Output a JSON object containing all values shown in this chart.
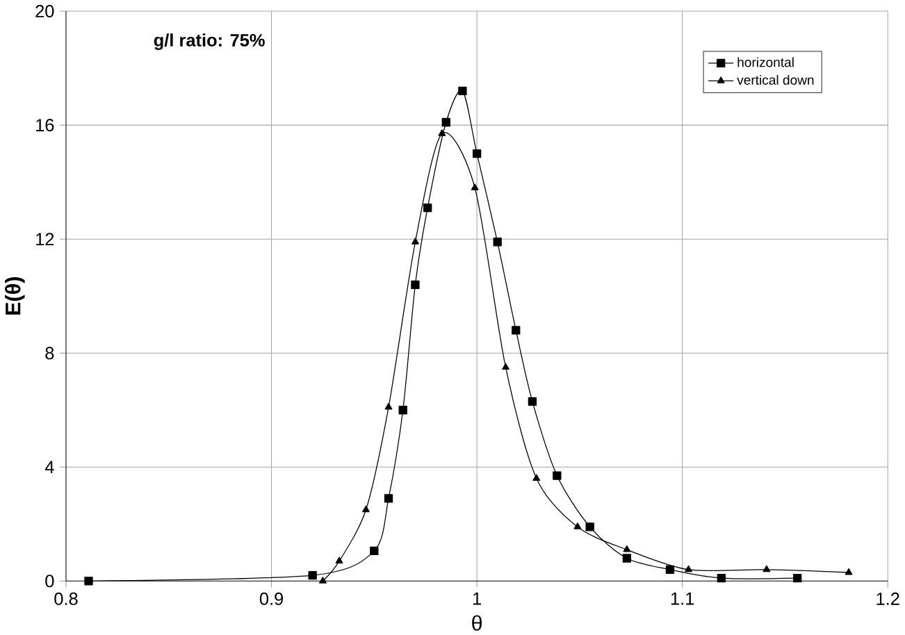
{
  "chart_data": {
    "type": "line",
    "xlabel": "θ",
    "ylabel": "E(θ)",
    "annotations": [
      "g/l ratio: 75%"
    ],
    "xlim": [
      0.8,
      1.2
    ],
    "xticks": [
      0.8,
      0.9,
      1,
      1.1,
      1.2
    ],
    "ylim": [
      0,
      20
    ],
    "yticks": [
      0,
      4,
      8,
      12,
      16,
      20
    ],
    "grid": true,
    "legend": "top right",
    "series": [
      {
        "name": "horizontal",
        "color": "#000000",
        "marker": "square",
        "x": [
          0.811,
          0.92,
          0.95,
          0.957,
          0.964,
          0.97,
          0.976,
          0.985,
          0.993,
          1.0,
          1.01,
          1.019,
          1.027,
          1.039,
          1.055,
          1.073,
          1.094,
          1.119,
          1.156
        ],
        "values": [
          0.0,
          0.2,
          1.06,
          2.9,
          6.0,
          10.4,
          13.1,
          16.1,
          17.2,
          15.0,
          11.9,
          8.8,
          6.3,
          3.7,
          1.9,
          0.8,
          0.4,
          0.1,
          0.1
        ]
      },
      {
        "name": "vertical down",
        "color": "#000000",
        "marker": "triangle",
        "x": [
          0.925,
          0.933,
          0.946,
          0.957,
          0.97,
          0.983,
          0.999,
          1.014,
          1.029,
          1.049,
          1.073,
          1.103,
          1.141,
          1.181
        ],
        "values": [
          0.0,
          0.7,
          2.5,
          6.1,
          11.9,
          15.7,
          13.8,
          7.5,
          3.6,
          1.9,
          1.1,
          0.4,
          0.4,
          0.3
        ]
      }
    ]
  }
}
